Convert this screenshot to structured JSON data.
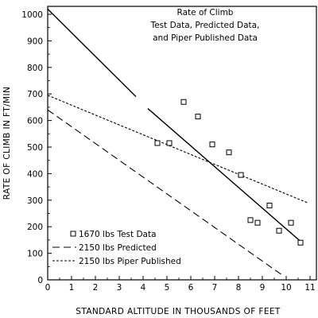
{
  "chart_data": {
    "type": "scatter",
    "title": [
      "Rate of Climb",
      "Test Data, Predicted Data,",
      "and Piper Published Data"
    ],
    "xlabel": "STANDARD ALTITUDE IN THOUSANDS OF FEET",
    "ylabel": "RATE OF CLIMB IN FT/MIN",
    "xlim": [
      0,
      11
    ],
    "ylim": [
      0,
      1000
    ],
    "x_ticks": [
      "0",
      "1",
      "2",
      "3",
      "4",
      "5",
      "6",
      "7",
      "8",
      "9",
      "10",
      "11"
    ],
    "y_ticks": [
      "0",
      "100",
      "200",
      "300",
      "400",
      "500",
      "600",
      "700",
      "800",
      "900",
      "1000"
    ],
    "legend_position": "bottom-left",
    "series": [
      {
        "name": "1670 lbs Test Data",
        "style": "markers",
        "marker": "square",
        "points": [
          {
            "x": 4.6,
            "y": 515
          },
          {
            "x": 5.1,
            "y": 515
          },
          {
            "x": 5.7,
            "y": 670
          },
          {
            "x": 6.3,
            "y": 615
          },
          {
            "x": 6.9,
            "y": 510
          },
          {
            "x": 7.6,
            "y": 480
          },
          {
            "x": 8.1,
            "y": 395
          },
          {
            "x": 8.5,
            "y": 225
          },
          {
            "x": 8.8,
            "y": 215
          },
          {
            "x": 9.3,
            "y": 280
          },
          {
            "x": 9.7,
            "y": 185
          },
          {
            "x": 10.2,
            "y": 215
          },
          {
            "x": 10.6,
            "y": 140
          }
        ]
      },
      {
        "name": "1670 lbs test data fit",
        "style": "solid",
        "segments": [
          [
            {
              "x": 0,
              "y": 1020
            },
            {
              "x": 3.7,
              "y": 690
            }
          ],
          [
            {
              "x": 4.2,
              "y": 645
            },
            {
              "x": 10.6,
              "y": 145
            }
          ]
        ]
      },
      {
        "name": "2150 lbs Predicted",
        "style": "long-dash",
        "segments": [
          [
            {
              "x": 0,
              "y": 640
            },
            {
              "x": 9.8,
              "y": 20
            }
          ]
        ]
      },
      {
        "name": "2150 lbs Piper Published",
        "style": "short-dash",
        "segments": [
          [
            {
              "x": 0,
              "y": 695
            },
            {
              "x": 10.9,
              "y": 290
            }
          ]
        ]
      }
    ],
    "legend": [
      {
        "label": "1670 lbs Test Data",
        "style": "marker"
      },
      {
        "label": "2150 lbs Predicted",
        "style": "long-dash"
      },
      {
        "label": "2150 lbs Piper Published",
        "style": "short-dash"
      }
    ]
  }
}
